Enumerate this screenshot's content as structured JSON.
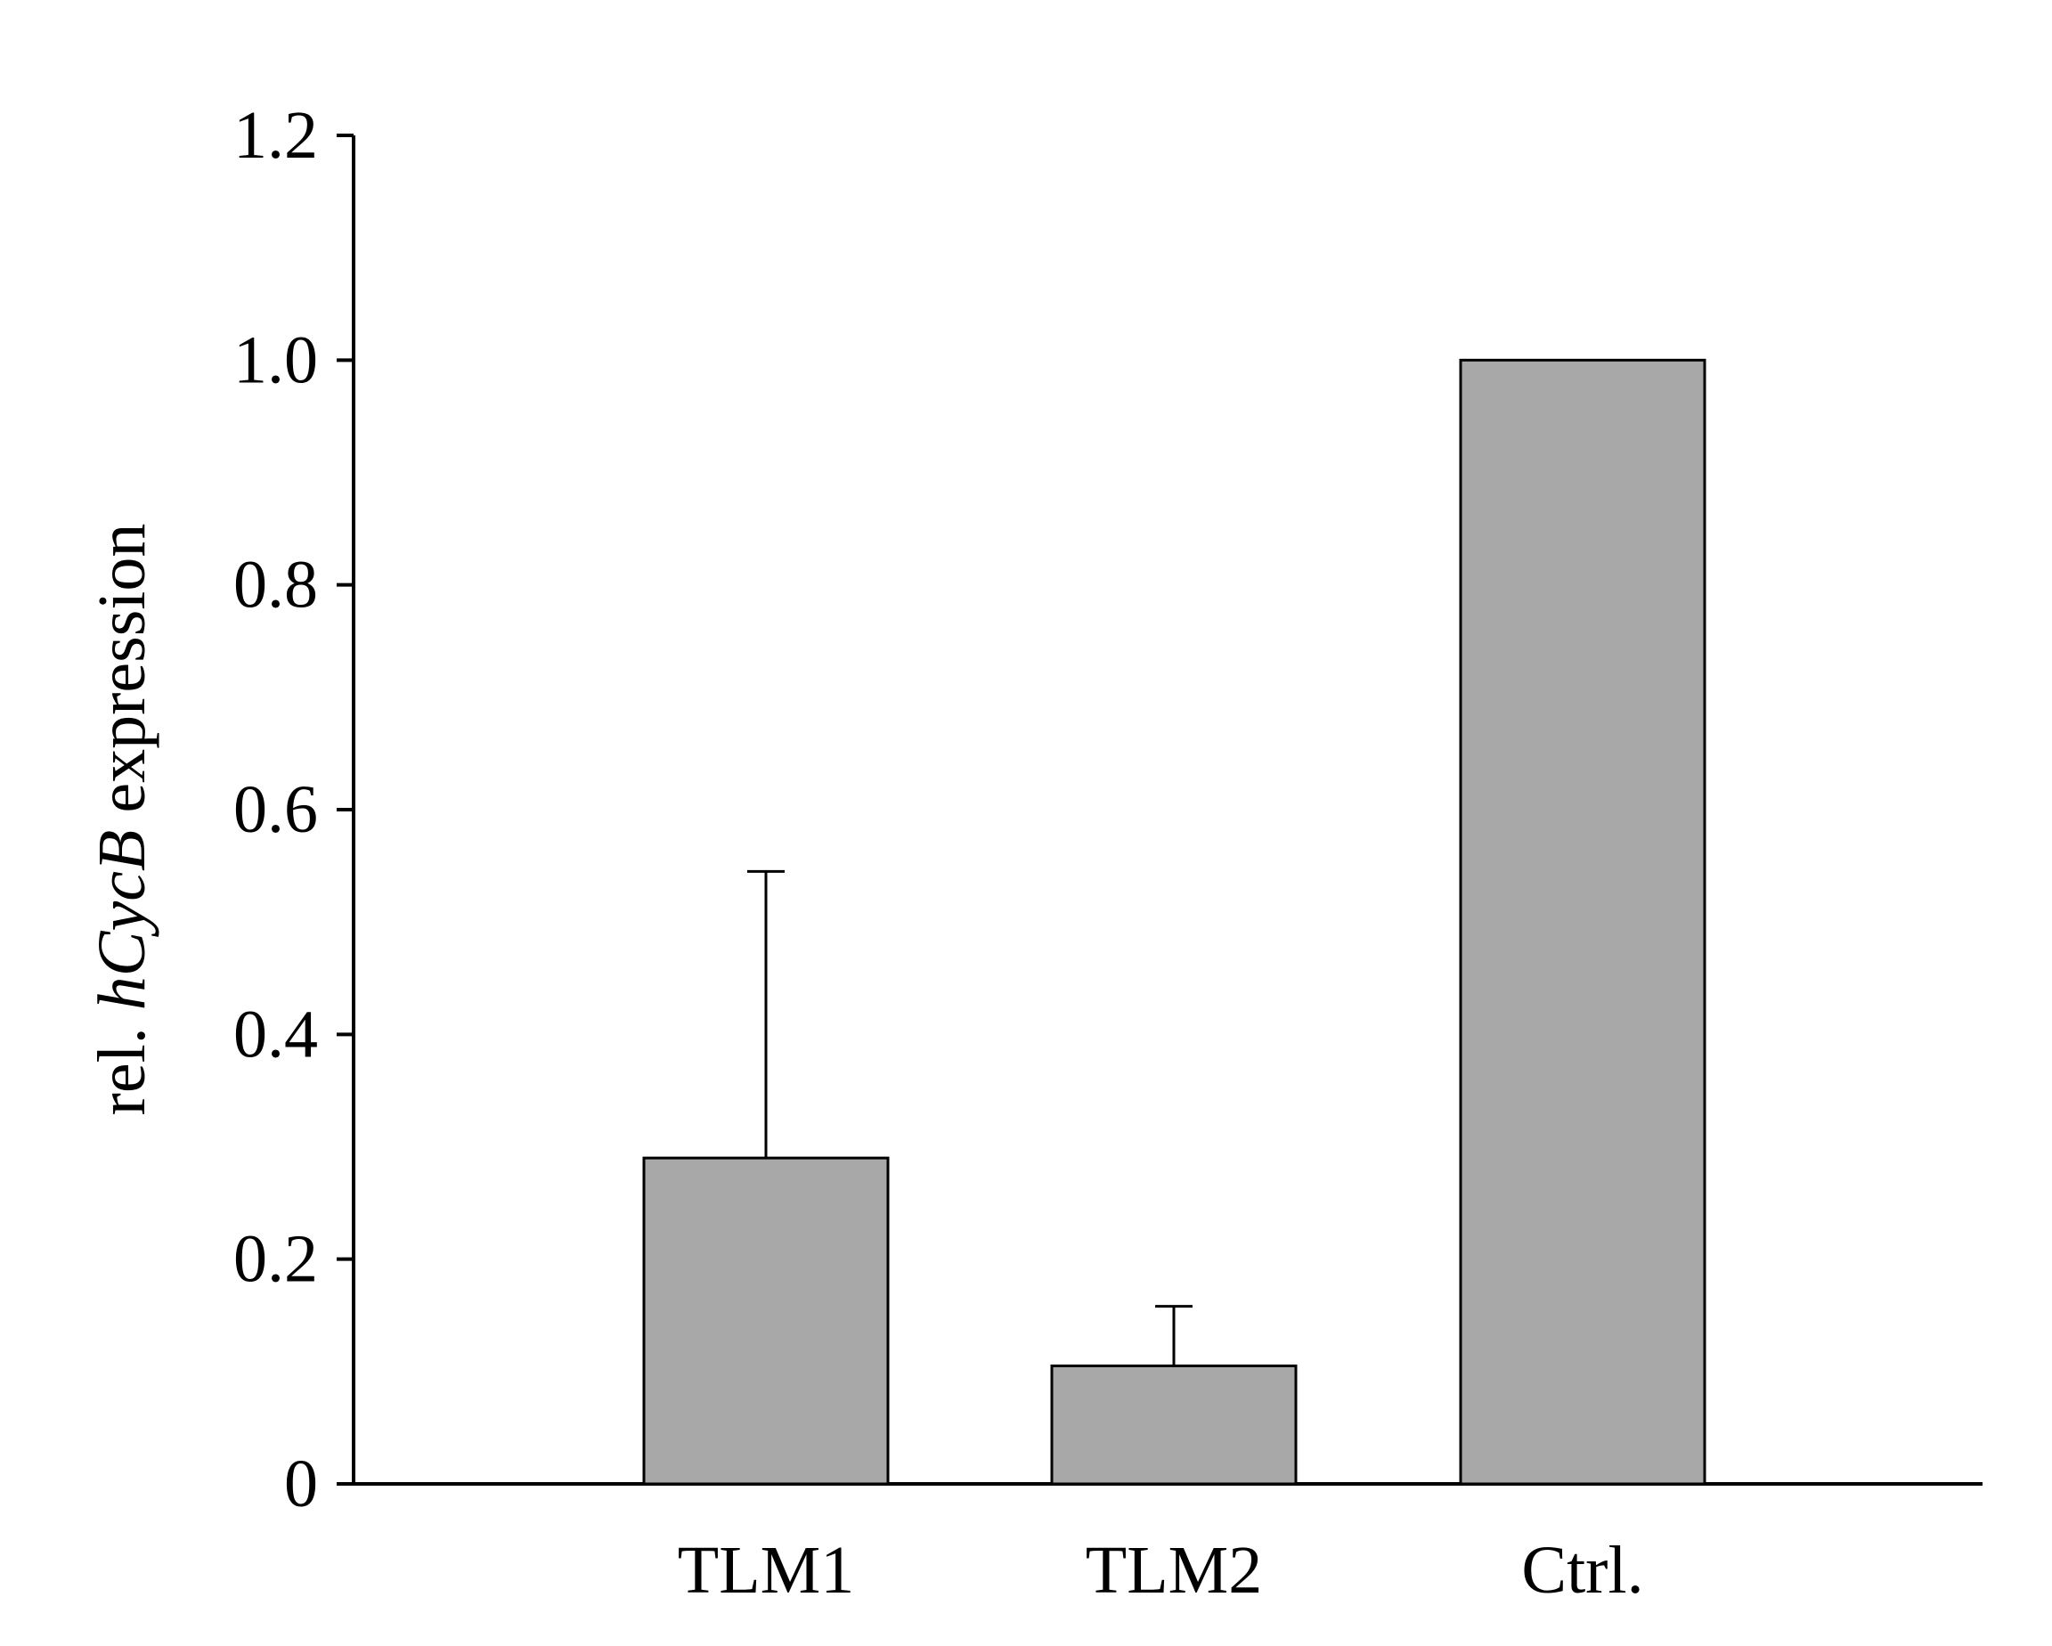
{
  "chart_data": {
    "type": "bar",
    "categories": [
      "TLM1",
      "TLM2",
      "Ctrl."
    ],
    "values": [
      0.29,
      0.105,
      1.0
    ],
    "error_upper": [
      0.545,
      0.158,
      null
    ],
    "ylabel": {
      "prefix": "rel. ",
      "gene": "hCycB",
      "suffix": " expression"
    },
    "xlabel": "",
    "ylim": [
      0,
      1.2
    ],
    "yticks": [
      0,
      0.2,
      0.4,
      0.6,
      0.8,
      1.0,
      1.2
    ],
    "ytick_labels": [
      "0",
      "0.2",
      "0.4",
      "0.6",
      "0.8",
      "1.0",
      "1.2"
    ],
    "bar_color": "#a8a8a8",
    "grid": false,
    "legend": "none"
  }
}
